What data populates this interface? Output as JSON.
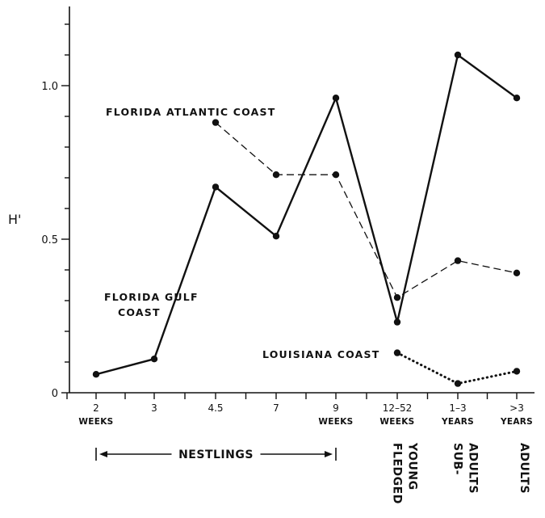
{
  "chart_data": {
    "type": "line",
    "ylabel": "H'",
    "xlabel": "",
    "ylim": [
      0,
      1.25
    ],
    "yticks": [
      {
        "value": 0,
        "label": "0"
      },
      {
        "value": 0.5,
        "label": "0.5"
      },
      {
        "value": 1.0,
        "label": "1.0"
      }
    ],
    "categories": [
      {
        "line1": "2",
        "line2": "WEEKS"
      },
      {
        "line1": "3",
        "line2": ""
      },
      {
        "line1": "4.5",
        "line2": ""
      },
      {
        "line1": "7",
        "line2": ""
      },
      {
        "line1": "9",
        "line2": "WEEKS"
      },
      {
        "line1": "12–52",
        "line2": "WEEKS"
      },
      {
        "line1": "1–3",
        "line2": "YEARS"
      },
      {
        "line1": ">3",
        "line2": "YEARS"
      }
    ],
    "series": [
      {
        "name": "FLORIDA ATLANTIC COAST",
        "style": "dashed",
        "values": [
          null,
          null,
          0.88,
          0.71,
          0.71,
          0.31,
          0.43,
          0.39
        ]
      },
      {
        "name": "FLORIDA GULF COAST",
        "name_lines": [
          "FLORIDA GULF",
          "COAST"
        ],
        "style": "solid",
        "values": [
          0.06,
          0.11,
          0.67,
          0.51,
          0.96,
          0.23,
          1.1,
          0.96
        ]
      },
      {
        "name": "LOUISIANA COAST",
        "style": "dotted",
        "values": [
          null,
          null,
          null,
          null,
          null,
          0.13,
          0.03,
          0.07
        ]
      }
    ],
    "groups": [
      {
        "label": "NESTLINGS",
        "from": 0,
        "to": 4,
        "orientation": "horizontal"
      },
      {
        "label_lines": [
          "FLEDGED",
          "YOUNG"
        ],
        "at": 5,
        "orientation": "vertical"
      },
      {
        "label_lines": [
          "SUB-",
          "ADULTS"
        ],
        "at": 6,
        "orientation": "vertical"
      },
      {
        "label_lines": [
          "ADULTS"
        ],
        "at": 7,
        "orientation": "vertical"
      }
    ]
  }
}
